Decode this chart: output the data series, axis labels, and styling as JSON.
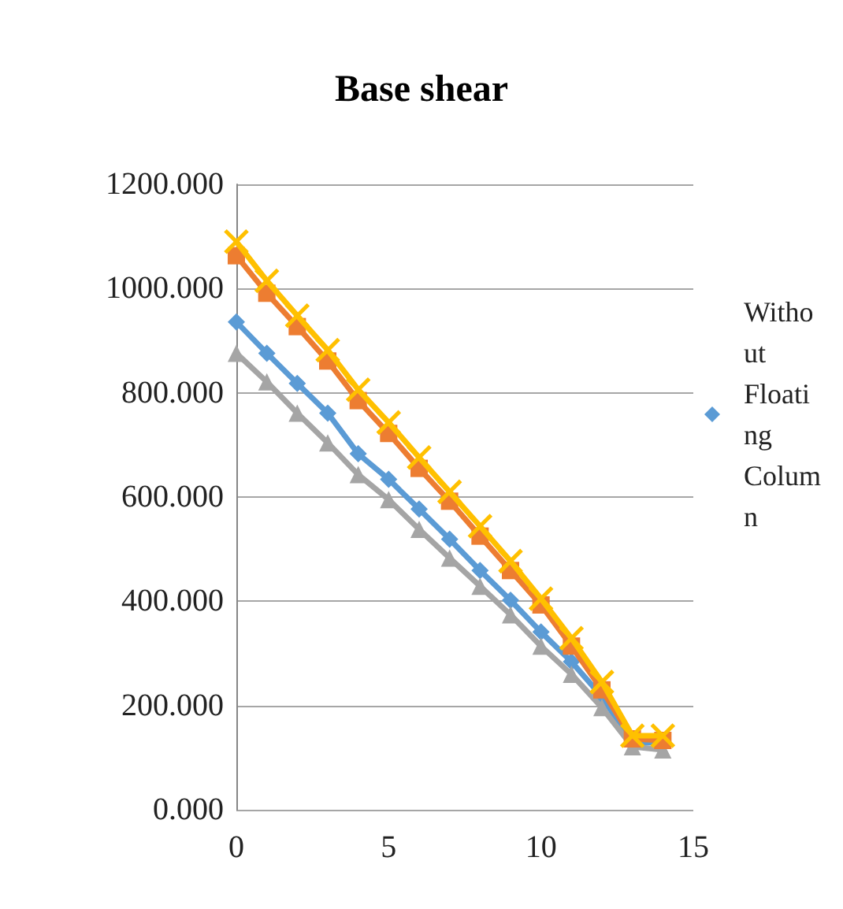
{
  "chart_data": {
    "type": "line",
    "title": "Base shear",
    "x": [
      0,
      1,
      2,
      3,
      4,
      5,
      6,
      7,
      8,
      9,
      10,
      11,
      12,
      13,
      14
    ],
    "xlim": [
      0,
      15
    ],
    "xticks": [
      0,
      5,
      10,
      15
    ],
    "ylim": [
      0,
      1200
    ],
    "yticks": [
      {
        "value": 0,
        "label": "0.000"
      },
      {
        "value": 200,
        "label": "200.000"
      },
      {
        "value": 400,
        "label": "400.000"
      },
      {
        "value": 600,
        "label": "600.000"
      },
      {
        "value": 800,
        "label": "800.000"
      },
      {
        "value": 1000,
        "label": "1000.000"
      },
      {
        "value": 1200,
        "label": "1200.000"
      }
    ],
    "grid": "y",
    "legend": "right",
    "line_style": "solid",
    "series": [
      {
        "name": "Without Floating Column",
        "color": "#5b9bd5",
        "marker": "diamond",
        "values": [
          936,
          876,
          818,
          761,
          683,
          634,
          577,
          519,
          459,
          402,
          341,
          284,
          217,
          127,
          130
        ]
      },
      {
        "color": "#a5a5a5",
        "marker": "triangle",
        "values": [
          876,
          821,
          761,
          704,
          643,
          595,
          538,
          483,
          429,
          374,
          314,
          260,
          196,
          121,
          115
        ]
      },
      {
        "color": "#ed7d31",
        "marker": "square",
        "values": [
          1063,
          991,
          927,
          861,
          785,
          722,
          655,
          592,
          525,
          459,
          393,
          314,
          230,
          136,
          133
        ]
      },
      {
        "color": "#ffc000",
        "marker": "cross",
        "values": [
          1090,
          1015,
          948,
          882,
          806,
          743,
          676,
          610,
          544,
          477,
          405,
          329,
          245,
          142,
          142
        ]
      }
    ]
  }
}
